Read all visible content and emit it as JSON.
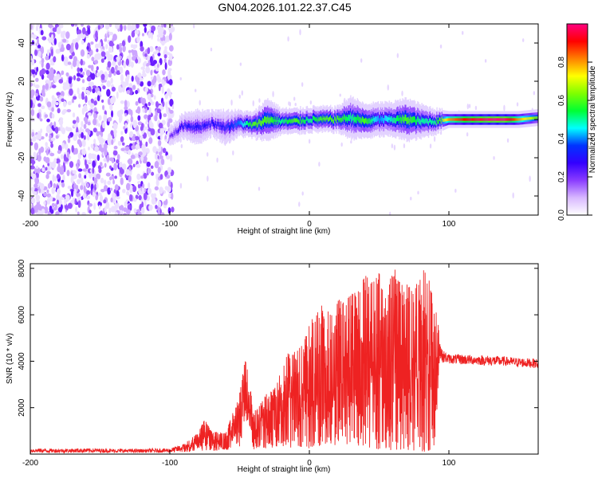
{
  "title": "GN04.2026.101.22.37.C45",
  "chart_data": [
    {
      "type": "heatmap",
      "title": "GN04.2026.101.22.37.C45",
      "xlabel": "Height of straight line (km)",
      "ylabel": "Frequency (Hz)",
      "xlim": [
        -200,
        164
      ],
      "ylim": [
        -50,
        50
      ],
      "xticks": [
        -200,
        -100,
        0,
        100
      ],
      "yticks": [
        -40,
        -20,
        0,
        20,
        40
      ],
      "colorbar": {
        "label": "Normalized spectral amplitude",
        "range": [
          0,
          1
        ],
        "ticks": [
          "0.0",
          "0.2",
          "0.4",
          "0.6",
          "0.8"
        ],
        "colors": [
          "#ffffff",
          "#d8b8ff",
          "#8a3cff",
          "#3300ff",
          "#0033ff",
          "#00ffff",
          "#00ff33",
          "#7fff00",
          "#ffff00",
          "#ff8000",
          "#ff0000",
          "#ff0080"
        ]
      },
      "noise_region_x": [
        -200,
        -98
      ],
      "ridge_x": [
        -100,
        -90,
        -80,
        -70,
        -60,
        -50,
        -40,
        -30,
        -20,
        -10,
        0,
        10,
        20,
        30,
        40,
        50,
        60,
        70,
        80,
        90,
        100,
        110,
        120,
        130,
        140,
        150,
        164
      ],
      "ridge_freq_hz": [
        -9,
        -3,
        -4,
        -2,
        -4,
        -2,
        -3,
        0,
        -1,
        -1,
        0,
        0,
        0,
        1,
        -1,
        0,
        0,
        0,
        -1,
        -1,
        0,
        0,
        0,
        0,
        0,
        0,
        1
      ],
      "ridge_amplitude": [
        0.2,
        0.3,
        0.3,
        0.3,
        0.3,
        0.4,
        0.6,
        0.6,
        0.5,
        0.6,
        0.5,
        0.6,
        0.6,
        0.5,
        0.6,
        0.4,
        0.5,
        0.6,
        0.5,
        0.5,
        0.8,
        0.9,
        0.95,
        1.0,
        1.0,
        0.8,
        0.6
      ],
      "ridge_halfwidth_hz": [
        2,
        3,
        4,
        3,
        4,
        3,
        3,
        5,
        3,
        3,
        3,
        3,
        3,
        5,
        4,
        4,
        4,
        5,
        4,
        3,
        2,
        2,
        2,
        2,
        2,
        2,
        2
      ]
    },
    {
      "type": "line",
      "xlabel": "Height of straight line (km)",
      "ylabel": "SNR (10 * v/v)",
      "xlim": [
        -200,
        164
      ],
      "ylim": [
        0,
        8200
      ],
      "xticks": [
        -200,
        -100,
        0,
        100
      ],
      "yticks": [
        2000,
        4000,
        6000,
        8000
      ],
      "series": [
        {
          "name": "SNR",
          "color": "#ee2222",
          "envelope_x": [
            -200,
            -180,
            -160,
            -140,
            -120,
            -100,
            -90,
            -80,
            -75,
            -70,
            -60,
            -50,
            -46,
            -43,
            -40,
            -35,
            -30,
            -25,
            -20,
            -15,
            -10,
            -5,
            0,
            5,
            10,
            15,
            20,
            25,
            30,
            35,
            40,
            45,
            50,
            55,
            60,
            65,
            70,
            75,
            80,
            85,
            90,
            93,
            95,
            100,
            110,
            120,
            130,
            140,
            150,
            164
          ],
          "envelope_low": [
            60,
            60,
            60,
            60,
            60,
            60,
            80,
            120,
            150,
            140,
            180,
            250,
            1500,
            1200,
            200,
            250,
            250,
            300,
            350,
            250,
            350,
            300,
            250,
            300,
            300,
            350,
            350,
            400,
            350,
            300,
            300,
            250,
            200,
            200,
            150,
            200,
            150,
            150,
            100,
            100,
            100,
            3900,
            3950,
            3900,
            3850,
            3850,
            3800,
            3800,
            3750,
            3700
          ],
          "envelope_high": [
            250,
            230,
            250,
            230,
            220,
            250,
            450,
            900,
            1500,
            1000,
            900,
            2600,
            4100,
            3200,
            1800,
            2200,
            2700,
            2800,
            3800,
            4400,
            4400,
            4700,
            5600,
            6300,
            6500,
            6000,
            6700,
            6500,
            6900,
            7000,
            7700,
            7400,
            7800,
            6600,
            8150,
            7400,
            7300,
            7100,
            8050,
            7700,
            6400,
            5400,
            4500,
            4300,
            4300,
            4250,
            4250,
            4200,
            4150,
            4100
          ]
        }
      ]
    }
  ]
}
